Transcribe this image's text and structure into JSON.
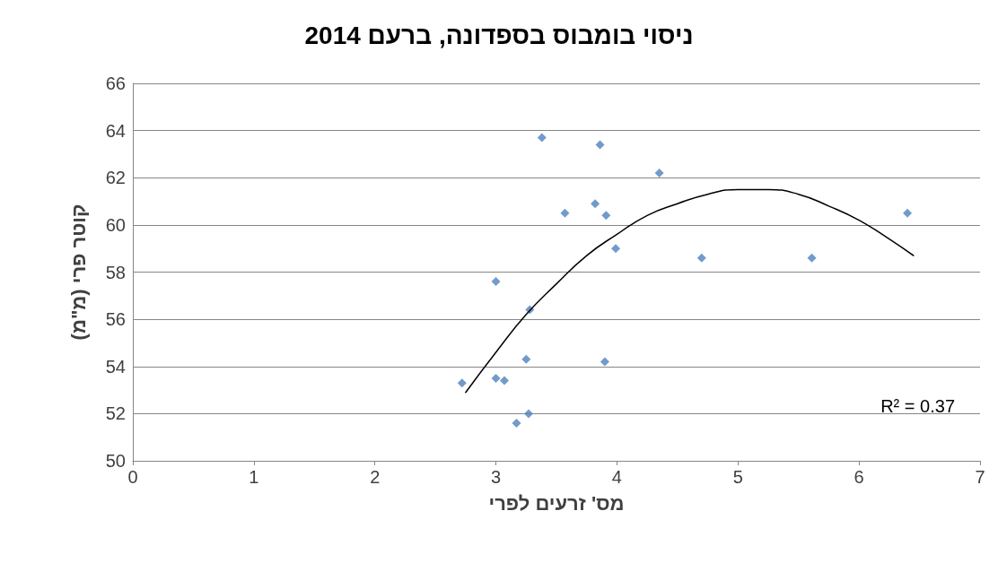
{
  "chart_data": {
    "type": "scatter",
    "title": "ניסוי בומבוס בספדונה, ברעם 2014",
    "xlabel": "מס' זרעים לפרי",
    "ylabel": "קוטר פרי (מ\"מ)",
    "xlim": [
      0,
      7
    ],
    "xticks": [
      0,
      1,
      2,
      3,
      4,
      5,
      6,
      7
    ],
    "ylim": [
      50,
      66
    ],
    "yticks": [
      50,
      52,
      54,
      56,
      58,
      60,
      62,
      64,
      66
    ],
    "grid": "y",
    "annotations": [
      "R² = 0.37"
    ],
    "series": [
      {
        "color": "#4f81bd",
        "marker": "diamond",
        "x": [
          2.72,
          3.0,
          3.0,
          3.07,
          3.17,
          3.25,
          3.27,
          3.28,
          3.38,
          3.57,
          3.82,
          3.86,
          3.91,
          3.9,
          3.99,
          4.35,
          4.7,
          5.61,
          6.4
        ],
        "values": [
          53.3,
          57.6,
          53.5,
          53.4,
          51.6,
          54.3,
          52.0,
          56.4,
          63.7,
          60.5,
          60.9,
          63.4,
          60.4,
          54.2,
          59.0,
          62.2,
          58.6,
          58.6,
          60.5
        ]
      },
      {
        "type": "line",
        "color": "#000000",
        "marker": "none",
        "x": [
          2.75,
          3.0,
          3.25,
          3.5,
          3.75,
          4.0,
          4.25,
          4.5,
          4.75,
          5.0,
          5.25,
          5.5,
          5.75,
          6.0,
          6.25,
          6.45
        ],
        "values": [
          52.9,
          54.6,
          56.2,
          57.5,
          58.7,
          59.6,
          60.4,
          60.9,
          61.3,
          61.5,
          61.5,
          61.3,
          60.8,
          60.2,
          59.4,
          58.7
        ]
      }
    ]
  }
}
